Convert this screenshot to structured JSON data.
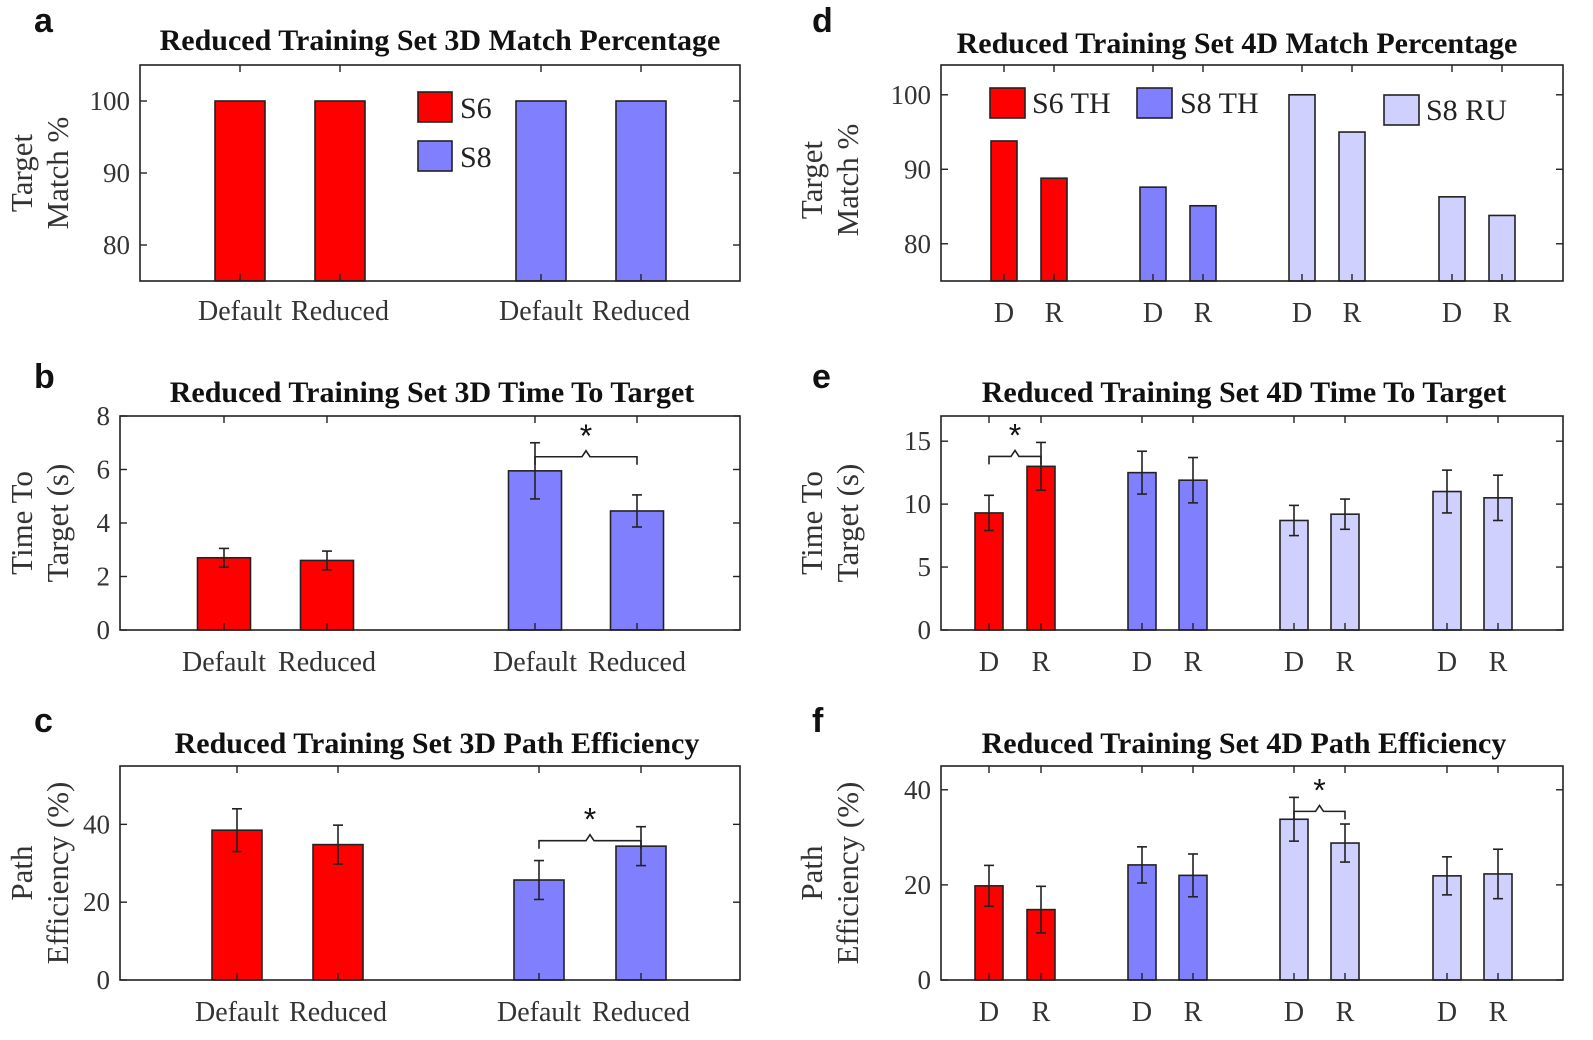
{
  "colors": {
    "S6": "#ff0000",
    "S8": "#8080ff",
    "S8_RU": "#d0d0ff"
  },
  "chart_data": [
    {
      "id": "a",
      "panel_letter": "a",
      "type": "bar",
      "title": "Reduced Training Set 3D Match Percentage",
      "ylabel": [
        "Target",
        "Match %"
      ],
      "ylim": [
        75,
        105
      ],
      "yticks": [
        80,
        90,
        100
      ],
      "categories": [
        "Default",
        "Reduced",
        "Default",
        "Reduced"
      ],
      "groups": [
        {
          "series": "S6",
          "color": "#ff0000",
          "values": [
            100,
            100
          ]
        },
        {
          "series": "S8",
          "color": "#8080ff",
          "values": [
            100,
            100
          ]
        }
      ],
      "legend": [
        {
          "label": "S6",
          "color": "#ff0000"
        },
        {
          "label": "S8",
          "color": "#8080ff"
        }
      ],
      "legend_position": "top-center",
      "significance": []
    },
    {
      "id": "b",
      "panel_letter": "b",
      "type": "bar",
      "title": "Reduced Training Set 3D Time To Target",
      "ylabel": [
        "Time To",
        "Target (s)"
      ],
      "ylim": [
        0,
        8
      ],
      "yticks": [
        0,
        2,
        4,
        6,
        8
      ],
      "categories": [
        "Default",
        "Reduced",
        "Default",
        "Reduced"
      ],
      "groups": [
        {
          "series": "S6",
          "color": "#ff0000",
          "values": [
            2.7,
            2.6
          ],
          "errors": [
            0.35,
            0.35
          ]
        },
        {
          "series": "S8",
          "color": "#8080ff",
          "values": [
            5.95,
            4.45
          ],
          "errors": [
            1.05,
            0.6
          ]
        }
      ],
      "significance": [
        {
          "from": 2,
          "to": 3,
          "label": "*"
        }
      ]
    },
    {
      "id": "c",
      "panel_letter": "c",
      "type": "bar",
      "title": "Reduced Training Set 3D Path Efficiency",
      "ylabel": [
        "Path",
        "Efficiency (%)"
      ],
      "ylim": [
        0,
        55
      ],
      "yticks": [
        0,
        20,
        40
      ],
      "categories": [
        "Default",
        "Reduced",
        "Default",
        "Reduced"
      ],
      "groups": [
        {
          "series": "S6",
          "color": "#ff0000",
          "values": [
            38.5,
            34.8
          ],
          "errors": [
            5.5,
            5
          ]
        },
        {
          "series": "S8",
          "color": "#8080ff",
          "values": [
            25.7,
            34.4
          ],
          "errors": [
            5,
            5
          ]
        }
      ],
      "significance": [
        {
          "from": 2,
          "to": 3,
          "label": "*"
        }
      ]
    },
    {
      "id": "d",
      "panel_letter": "d",
      "type": "bar",
      "title": "Reduced Training Set 4D Match Percentage",
      "ylabel": [
        "Target",
        "Match %"
      ],
      "ylim": [
        75,
        104
      ],
      "yticks": [
        80,
        90,
        100
      ],
      "categories": [
        "D",
        "R",
        "D",
        "R",
        "D",
        "R",
        "D",
        "R"
      ],
      "groups": [
        {
          "series": "S6 TH",
          "color": "#ff0000",
          "values": [
            93.8,
            88.8
          ]
        },
        {
          "series": "S8 TH",
          "color": "#8080ff",
          "values": [
            87.6,
            85.1
          ]
        },
        {
          "series": "S8 RU",
          "color": "#d0d0ff",
          "values": [
            100,
            95
          ]
        },
        {
          "series": "S8 RU",
          "color": "#d0d0ff",
          "values": [
            86.3,
            83.8
          ]
        }
      ],
      "legend": [
        {
          "label": "S6 TH",
          "color": "#ff0000"
        },
        {
          "label": "S8 TH",
          "color": "#8080ff"
        },
        {
          "label": "S8 RU",
          "color": "#d0d0ff"
        }
      ],
      "legend_position": "top",
      "significance": []
    },
    {
      "id": "e",
      "panel_letter": "e",
      "type": "bar",
      "title": "Reduced Training Set 4D Time To Target",
      "ylabel": [
        "Time To",
        "Target (s)"
      ],
      "ylim": [
        0,
        17
      ],
      "yticks": [
        0,
        5,
        10,
        15
      ],
      "categories": [
        "D",
        "R",
        "D",
        "R",
        "D",
        "R",
        "D",
        "R"
      ],
      "groups": [
        {
          "series": "S6 TH",
          "color": "#ff0000",
          "values": [
            9.3,
            13.0
          ],
          "errors": [
            1.4,
            1.9
          ]
        },
        {
          "series": "S8 TH",
          "color": "#8080ff",
          "values": [
            12.5,
            11.9
          ],
          "errors": [
            1.7,
            1.8
          ]
        },
        {
          "series": "S8 RU",
          "color": "#d0d0ff",
          "values": [
            8.7,
            9.2
          ],
          "errors": [
            1.2,
            1.2
          ]
        },
        {
          "series": "S8 RU",
          "color": "#d0d0ff",
          "values": [
            11.0,
            10.5
          ],
          "errors": [
            1.7,
            1.8
          ]
        }
      ],
      "significance": [
        {
          "from": 0,
          "to": 1,
          "label": "*"
        }
      ]
    },
    {
      "id": "f",
      "panel_letter": "f",
      "type": "bar",
      "title": "Reduced Training Set 4D Path Efficiency",
      "ylabel": [
        "Path",
        "Efficiency (%)"
      ],
      "ylim": [
        0,
        45
      ],
      "yticks": [
        0,
        20,
        40
      ],
      "categories": [
        "D",
        "R",
        "D",
        "R",
        "D",
        "R",
        "D",
        "R"
      ],
      "groups": [
        {
          "series": "S6 TH",
          "color": "#ff0000",
          "values": [
            19.8,
            14.8
          ],
          "errors": [
            4.3,
            4.9
          ]
        },
        {
          "series": "S8 TH",
          "color": "#8080ff",
          "values": [
            24.2,
            22.0
          ],
          "errors": [
            3.8,
            4.5
          ]
        },
        {
          "series": "S8 RU",
          "color": "#d0d0ff",
          "values": [
            33.8,
            28.8
          ],
          "errors": [
            4.6,
            4.0
          ]
        },
        {
          "series": "S8 RU",
          "color": "#d0d0ff",
          "values": [
            21.9,
            22.3
          ],
          "errors": [
            4.0,
            5.2
          ]
        }
      ],
      "significance": [
        {
          "from": 4,
          "to": 5,
          "label": "*"
        }
      ]
    }
  ]
}
